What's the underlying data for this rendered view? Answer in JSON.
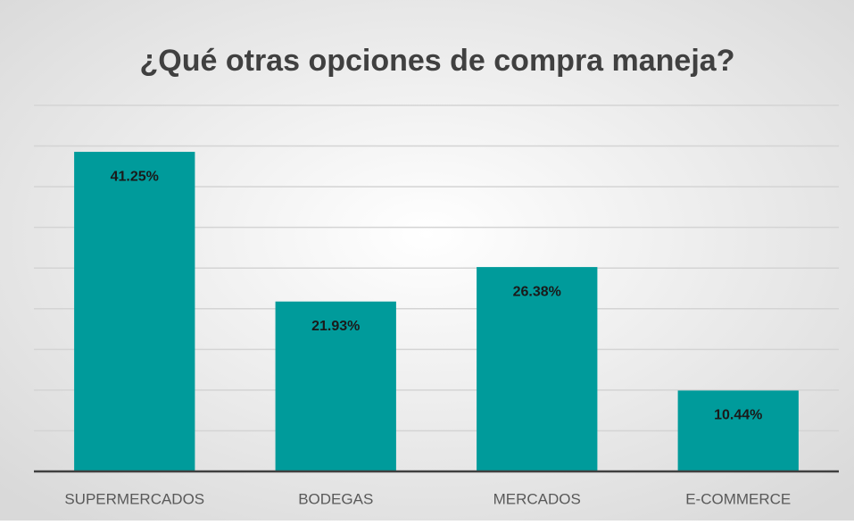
{
  "chart_data": {
    "type": "bar",
    "title": "¿Qué otras opciones de compra maneja?",
    "categories": [
      "SUPERMERCADOS",
      "BODEGAS",
      "MERCADOS",
      "E-COMMERCE"
    ],
    "values": [
      41.25,
      21.93,
      26.38,
      10.44
    ],
    "value_labels": [
      "41.25%",
      "21.93%",
      "26.38%",
      "10.44%"
    ],
    "color": "#009b9b",
    "ylim": [
      0,
      47.25
    ],
    "yticks": [
      0,
      5.25,
      10.5,
      15.75,
      21,
      26.25,
      31.5,
      36.75,
      42,
      47.25
    ],
    "grid": true
  }
}
